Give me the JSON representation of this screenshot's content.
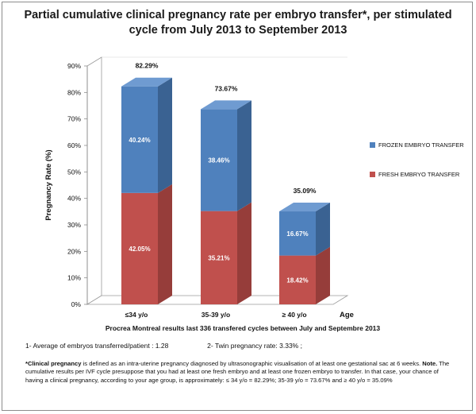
{
  "title_line1": "Partial cumulative clinical pregnancy rate per embryo transfer*,  per stimulated",
  "title_line2": "cycle from July 2013 to September 2013",
  "chart_data": {
    "type": "bar",
    "stacked": true,
    "three_d": true,
    "categories": [
      "≤34  y/o",
      "35-39  y/o",
      "≥ 40  y/o"
    ],
    "series": [
      {
        "name": "FRESH EMBRYO TRANSFER",
        "values": [
          42.05,
          35.21,
          18.42
        ],
        "labels": [
          "42.05%",
          "35.21%",
          "18.42%"
        ],
        "color": "#c0504d"
      },
      {
        "name": "FROZEN EMBRYO TRANSFER",
        "values": [
          40.24,
          38.46,
          16.67
        ],
        "labels": [
          "40.24%",
          "38.46%",
          "16.67%"
        ],
        "color": "#4f81bd"
      }
    ],
    "totals": [
      "82.29%",
      "73.67%",
      "35.09%"
    ],
    "ylabel": "Pregnancy    Rate (%)",
    "xlabel": "Age",
    "ylim": [
      0,
      90
    ],
    "yticks": [
      "0%",
      "10%",
      "20%",
      "30%",
      "40%",
      "50%",
      "60%",
      "70%",
      "80%",
      "90%"
    ],
    "grid": false,
    "legend_position": "right",
    "caption": "Procrea Montreal results  last 336  transfered  cycles  between  July and   Septembre 2013"
  },
  "notes": {
    "avg_embryos": "1- Average of embryos transferred/patient :  1.28",
    "twin_rate": "2-  Twin pregnancy rate:  3.33% ;",
    "definition_term": "*Clinical pregnancy",
    "definition_text": " is defined as an intra-uterine pregnancy diagnosed by ultrasonographic visualisation of at least one gestational sac at 6 weeks.",
    "note_label": "  Note.",
    "note_text": " The cumulative results per IVF cycle presuppose that you had at least one fresh embryo and at least one frozen embryo to transfer. In that case, your chance of having a clinical pregnancy, according to your age group, is  approximately:  ≤ 34 y/o =  82.29%;  35-39 y/o  = 73.67%   and   ≥ 40  y/o =  35.09%"
  }
}
